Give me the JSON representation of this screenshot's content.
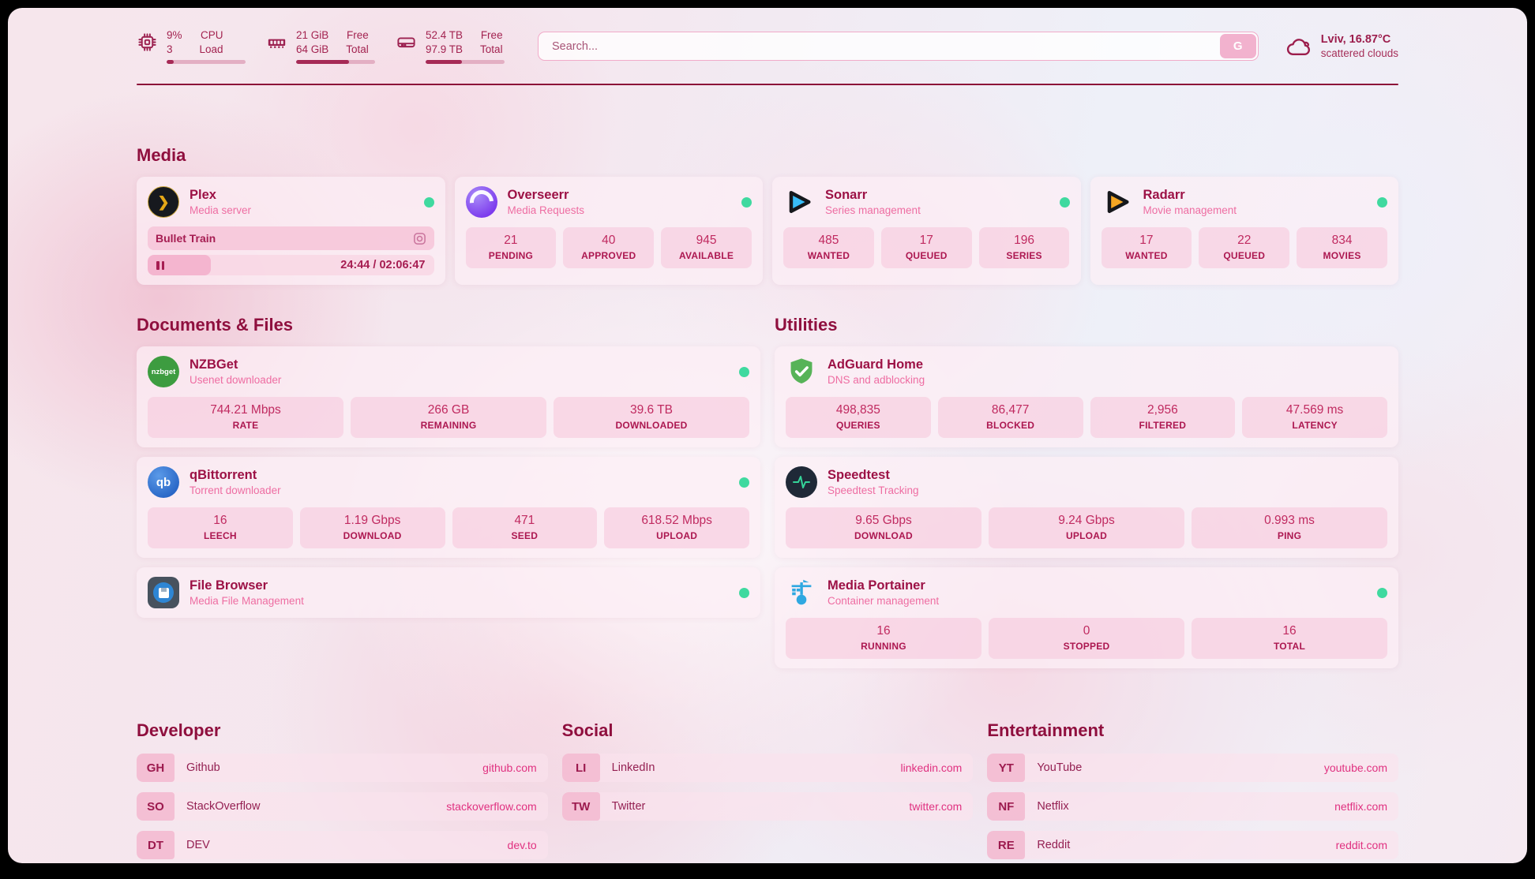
{
  "header": {
    "cpu": {
      "value": "9%",
      "secondary": "3",
      "label_top": "CPU",
      "label_bottom": "Load",
      "progress": 9
    },
    "memory": {
      "value": "21 GiB",
      "secondary": "64 GiB",
      "label_top": "Free",
      "label_bottom": "Total",
      "progress": 67
    },
    "disk": {
      "value": "52.4 TB",
      "secondary": "97.9 TB",
      "label_top": "Free",
      "label_bottom": "Total",
      "progress": 46
    },
    "search": {
      "placeholder": "Search...",
      "button_label": "G"
    },
    "weather": {
      "location": "Lviv, 16.87°C",
      "condition": "scattered clouds"
    }
  },
  "sections": {
    "media": {
      "title": "Media",
      "plex": {
        "title": "Plex",
        "subtitle": "Media server",
        "now_playing": "Bullet Train",
        "time": "24:44 / 02:06:47"
      },
      "overseerr": {
        "title": "Overseerr",
        "subtitle": "Media Requests",
        "stats": [
          {
            "value": "21",
            "label": "PENDING"
          },
          {
            "value": "40",
            "label": "APPROVED"
          },
          {
            "value": "945",
            "label": "AVAILABLE"
          }
        ]
      },
      "sonarr": {
        "title": "Sonarr",
        "subtitle": "Series management",
        "stats": [
          {
            "value": "485",
            "label": "WANTED"
          },
          {
            "value": "17",
            "label": "QUEUED"
          },
          {
            "value": "196",
            "label": "SERIES"
          }
        ]
      },
      "radarr": {
        "title": "Radarr",
        "subtitle": "Movie management",
        "stats": [
          {
            "value": "17",
            "label": "WANTED"
          },
          {
            "value": "22",
            "label": "QUEUED"
          },
          {
            "value": "834",
            "label": "MOVIES"
          }
        ]
      }
    },
    "documents": {
      "title": "Documents & Files",
      "nzbget": {
        "title": "NZBGet",
        "subtitle": "Usenet downloader",
        "icon_text": "nzbget",
        "stats": [
          {
            "value": "744.21 Mbps",
            "label": "RATE"
          },
          {
            "value": "266 GB",
            "label": "REMAINING"
          },
          {
            "value": "39.6 TB",
            "label": "DOWNLOADED"
          }
        ]
      },
      "qbittorrent": {
        "title": "qBittorrent",
        "subtitle": "Torrent downloader",
        "icon_text": "qb",
        "stats": [
          {
            "value": "16",
            "label": "LEECH"
          },
          {
            "value": "1.19 Gbps",
            "label": "DOWNLOAD"
          },
          {
            "value": "471",
            "label": "SEED"
          },
          {
            "value": "618.52 Mbps",
            "label": "UPLOAD"
          }
        ]
      },
      "filebrowser": {
        "title": "File Browser",
        "subtitle": "Media File Management"
      }
    },
    "utilities": {
      "title": "Utilities",
      "adguard": {
        "title": "AdGuard Home",
        "subtitle": "DNS and adblocking",
        "stats": [
          {
            "value": "498,835",
            "label": "QUERIES"
          },
          {
            "value": "86,477",
            "label": "BLOCKED"
          },
          {
            "value": "2,956",
            "label": "FILTERED"
          },
          {
            "value": "47.569 ms",
            "label": "LATENCY"
          }
        ]
      },
      "speedtest": {
        "title": "Speedtest",
        "subtitle": "Speedtest Tracking",
        "stats": [
          {
            "value": "9.65 Gbps",
            "label": "DOWNLOAD"
          },
          {
            "value": "9.24 Gbps",
            "label": "UPLOAD"
          },
          {
            "value": "0.993 ms",
            "label": "PING"
          }
        ]
      },
      "portainer": {
        "title": "Media Portainer",
        "subtitle": "Container management",
        "stats": [
          {
            "value": "16",
            "label": "RUNNING"
          },
          {
            "value": "0",
            "label": "STOPPED"
          },
          {
            "value": "16",
            "label": "TOTAL"
          }
        ]
      }
    },
    "developer": {
      "title": "Developer",
      "links": [
        {
          "abbr": "GH",
          "name": "Github",
          "url": "github.com"
        },
        {
          "abbr": "SO",
          "name": "StackOverflow",
          "url": "stackoverflow.com"
        },
        {
          "abbr": "DT",
          "name": "DEV",
          "url": "dev.to"
        }
      ]
    },
    "social": {
      "title": "Social",
      "links": [
        {
          "abbr": "LI",
          "name": "LinkedIn",
          "url": "linkedin.com"
        },
        {
          "abbr": "TW",
          "name": "Twitter",
          "url": "twitter.com"
        }
      ]
    },
    "entertainment": {
      "title": "Entertainment",
      "links": [
        {
          "abbr": "YT",
          "name": "YouTube",
          "url": "youtube.com"
        },
        {
          "abbr": "NF",
          "name": "Netflix",
          "url": "netflix.com"
        },
        {
          "abbr": "RE",
          "name": "Reddit",
          "url": "reddit.com"
        }
      ]
    }
  },
  "colors": {
    "accent": "#9c1145",
    "subtitle_pink": "#ee6da2",
    "status_green": "#3fd99f",
    "divider": "#8c1038"
  }
}
